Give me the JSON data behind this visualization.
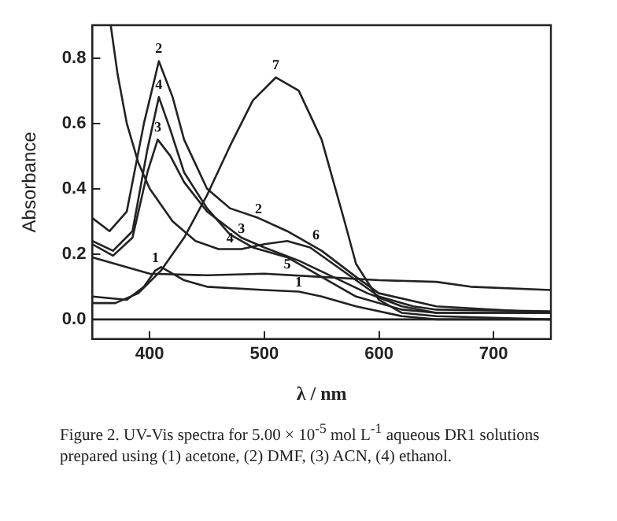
{
  "chart_data": {
    "type": "line",
    "xlabel": "λ / nm",
    "ylabel": "Absorbance",
    "xlim": [
      350,
      750
    ],
    "ylim": [
      -0.06,
      0.9
    ],
    "xticks": [
      400,
      500,
      600,
      700
    ],
    "yticks": [
      {
        "value": 0,
        "label": "0.0"
      },
      {
        "value": 0.2,
        "label": "0.2"
      },
      {
        "value": 0.4,
        "label": "0.4"
      },
      {
        "value": 0.6,
        "label": "0.6"
      },
      {
        "value": 0.8,
        "label": "0.8"
      }
    ],
    "grid": false,
    "legend": false,
    "marker": "none",
    "line_style": "solid",
    "ref_lines": [
      {
        "axis": "y",
        "value": 0,
        "color": "#222222"
      }
    ],
    "series": [
      {
        "color": "#222222",
        "x": [
          350,
          365,
          380,
          395,
          408,
          420,
          430,
          450,
          470,
          495,
          520,
          550,
          580,
          600,
          650,
          750
        ],
        "values": [
          0.31,
          0.27,
          0.33,
          0.6,
          0.79,
          0.68,
          0.55,
          0.4,
          0.34,
          0.31,
          0.27,
          0.21,
          0.13,
          0.08,
          0.04,
          0.02
        ]
      },
      {
        "color": "#222222",
        "x": [
          350,
          368,
          385,
          398,
          408,
          418,
          430,
          450,
          470,
          490,
          520,
          550,
          580,
          620,
          650,
          750
        ],
        "values": [
          0.24,
          0.21,
          0.27,
          0.52,
          0.68,
          0.58,
          0.45,
          0.34,
          0.26,
          0.22,
          0.19,
          0.13,
          0.07,
          0.03,
          0.02,
          0.02
        ]
      },
      {
        "color": "#222222",
        "x": [
          350,
          368,
          385,
          398,
          407,
          418,
          430,
          450,
          480,
          500,
          530,
          560,
          590,
          620,
          650,
          750
        ],
        "values": [
          0.23,
          0.195,
          0.25,
          0.45,
          0.55,
          0.5,
          0.42,
          0.33,
          0.25,
          0.22,
          0.18,
          0.13,
          0.08,
          0.04,
          0.02,
          0.02
        ]
      },
      {
        "color": "#222222",
        "x": [
          366,
          372,
          380,
          390,
          400,
          420,
          440,
          460,
          480,
          500,
          520,
          540,
          560,
          580,
          600,
          630,
          650,
          750
        ],
        "values": [
          0.9,
          0.75,
          0.6,
          0.48,
          0.4,
          0.3,
          0.24,
          0.215,
          0.215,
          0.23,
          0.24,
          0.22,
          0.17,
          0.12,
          0.07,
          0.04,
          0.03,
          0.025
        ]
      },
      {
        "color": "#222222",
        "x": [
          350,
          370,
          390,
          410,
          430,
          450,
          470,
          490,
          510,
          530,
          550,
          570,
          580,
          600,
          620,
          650,
          750
        ],
        "values": [
          0.05,
          0.05,
          0.08,
          0.15,
          0.25,
          0.38,
          0.53,
          0.67,
          0.74,
          0.7,
          0.55,
          0.3,
          0.17,
          0.06,
          0.02,
          0.01,
          0
        ]
      },
      {
        "color": "#222222",
        "x": [
          350,
          380,
          400,
          450,
          500,
          550,
          600,
          650,
          680,
          750
        ],
        "values": [
          0.19,
          0.16,
          0.14,
          0.135,
          0.14,
          0.13,
          0.12,
          0.115,
          0.1,
          0.09
        ]
      },
      {
        "color": "#222222",
        "x": [
          350,
          380,
          395,
          405,
          410,
          430,
          450,
          500,
          530,
          550,
          580,
          620,
          650,
          750
        ],
        "values": [
          0.07,
          0.06,
          0.1,
          0.15,
          0.16,
          0.12,
          0.1,
          0.09,
          0.085,
          0.07,
          0.04,
          0.01,
          0,
          0
        ]
      }
    ],
    "annotations": [
      {
        "text": "2",
        "x": 408,
        "y": 0.8
      },
      {
        "text": "4",
        "x": 408,
        "y": 0.69
      },
      {
        "text": "3",
        "x": 407,
        "y": 0.56
      },
      {
        "text": "7",
        "x": 510,
        "y": 0.75
      },
      {
        "text": "1",
        "x": 405,
        "y": 0.16
      },
      {
        "text": "2",
        "x": 495,
        "y": 0.31
      },
      {
        "text": "3",
        "x": 480,
        "y": 0.25
      },
      {
        "text": "4",
        "x": 470,
        "y": 0.22
      },
      {
        "text": "6",
        "x": 545,
        "y": 0.23
      },
      {
        "text": "5",
        "x": 520,
        "y": 0.14
      },
      {
        "text": "1",
        "x": 530,
        "y": 0.085
      },
      "Figure 2. UV-Vis spectra for 5.00 × 10$^{-5}$ mol L$^{-1}$ aqueous DR1 solutions prepared using (1) acetone, (2) DMF, (3) ACN, (4) ethanol."
    ]
  }
}
